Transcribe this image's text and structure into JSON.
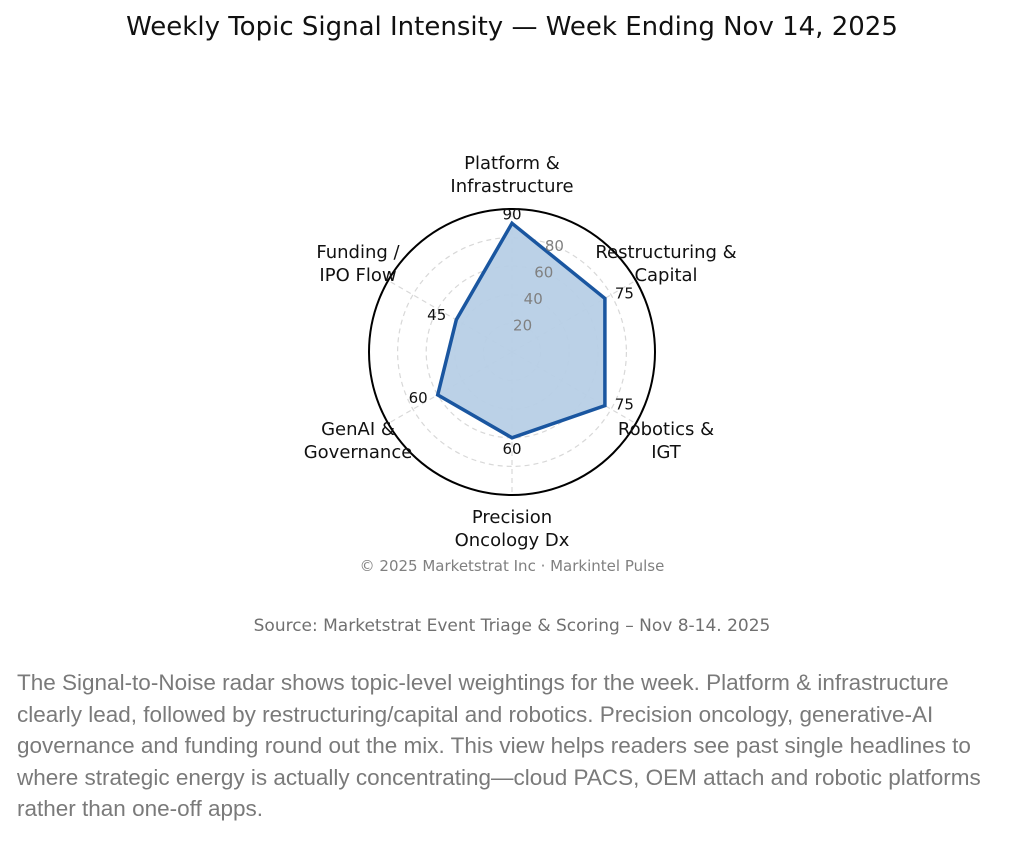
{
  "chart_data": {
    "type": "radar",
    "title": "Weekly Topic Signal Intensity — Week Ending Nov 14, 2025",
    "categories": [
      "Platform & Infrastructure",
      "Restructuring & Capital",
      "Robotics & IGT",
      "Precision Oncology Dx",
      "GenAI & Governance",
      "Funding / IPO Flow"
    ],
    "category_lines": [
      [
        "Platform &",
        "Infrastructure"
      ],
      [
        "Restructuring &",
        "Capital"
      ],
      [
        "Robotics &",
        "IGT"
      ],
      [
        "Precision",
        "Oncology Dx"
      ],
      [
        "GenAI &",
        "Governance"
      ],
      [
        "Funding /",
        "IPO Flow"
      ]
    ],
    "values": [
      90,
      75,
      75,
      60,
      60,
      45
    ],
    "radial_ticks": [
      20,
      40,
      60,
      80
    ],
    "rlim": [
      0,
      100
    ],
    "grid": true,
    "colors": {
      "line": "#1a56a0",
      "fill": "#b7cfe6",
      "grid": "#d8d8d8",
      "tick_label": "#808080"
    }
  },
  "footer": {
    "copyright": "© 2025 Marketstrat Inc · Markintel Pulse",
    "source": "Source: Marketstrat Event Triage & Scoring – Nov 8-14. 2025",
    "description": "The Signal-to-Noise radar shows topic-level weightings for the week. Platform & infrastructure clearly lead, followed by restructuring/capital and robotics. Precision oncology, generative-AI governance and funding round out the mix. This view helps readers see past single headlines to where strategic energy is actually concentrating—cloud PACS, OEM attach and robotic platforms rather than one-off apps."
  }
}
